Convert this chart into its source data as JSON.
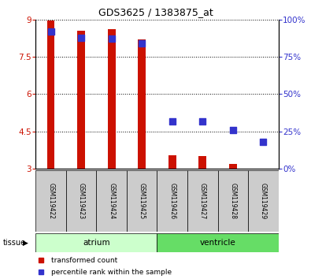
{
  "title": "GDS3625 / 1383875_at",
  "samples": [
    "GSM119422",
    "GSM119423",
    "GSM119424",
    "GSM119425",
    "GSM119426",
    "GSM119427",
    "GSM119428",
    "GSM119429"
  ],
  "transformed_counts": [
    8.95,
    8.55,
    8.6,
    8.2,
    3.55,
    3.5,
    3.2,
    3.02
  ],
  "percentile_ranks": [
    92,
    88,
    87,
    84,
    32,
    32,
    26,
    18
  ],
  "bar_bottom": 3.0,
  "ylim_left": [
    3.0,
    9.0
  ],
  "ylim_right": [
    0,
    100
  ],
  "yticks_left": [
    3,
    4.5,
    6,
    7.5,
    9
  ],
  "ytick_labels_left": [
    "3",
    "4.5",
    "6",
    "7.5",
    "9"
  ],
  "yticks_right": [
    0,
    25,
    50,
    75,
    100
  ],
  "ytick_labels_right": [
    "0%",
    "25%",
    "50%",
    "75%",
    "100%"
  ],
  "bar_color": "#cc1100",
  "dot_color": "#3333cc",
  "tissue_groups": [
    {
      "label": "atrium",
      "start": 0,
      "end": 4,
      "color": "#ccffcc"
    },
    {
      "label": "ventricle",
      "start": 4,
      "end": 8,
      "color": "#66dd66"
    }
  ],
  "tissue_label": "tissue",
  "legend_items": [
    {
      "label": "transformed count",
      "color": "#cc1100"
    },
    {
      "label": "percentile rank within the sample",
      "color": "#3333cc"
    }
  ],
  "grid_color": "#000000",
  "bar_width": 0.25,
  "dot_size": 28,
  "tick_color_left": "#cc1100",
  "tick_color_right": "#3333cc",
  "bg_color": "#ffffff",
  "sample_box_color": "#cccccc",
  "n_samples": 8
}
